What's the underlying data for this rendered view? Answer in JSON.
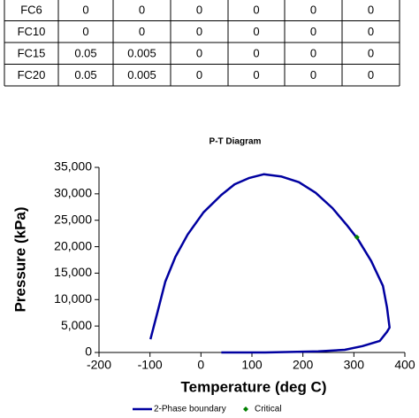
{
  "table": {
    "rows": [
      [
        "FC6",
        "0",
        "0",
        "0",
        "0",
        "0",
        "0"
      ],
      [
        "FC10",
        "0",
        "0",
        "0",
        "0",
        "0",
        "0"
      ],
      [
        "FC15",
        "0.05",
        "0.005",
        "0",
        "0",
        "0",
        "0"
      ],
      [
        "FC20",
        "0.05",
        "0.005",
        "0",
        "0",
        "0",
        "0"
      ]
    ]
  },
  "chart_data": {
    "type": "line",
    "title": "P-T Diagram",
    "x_label": "Temperature (deg C)",
    "y_label": "Pressure (kPa)",
    "series": [
      {
        "name": "2-Phase boundary",
        "color": "#0000a0",
        "x": [
          -99,
          -85,
          -70,
          -50,
          -26,
          5,
          40,
          66,
          95,
          123,
          157,
          192,
          225,
          258,
          287,
          308,
          334,
          357,
          365,
          370,
          365,
          351,
          317,
          282,
          230,
          126,
          40
        ],
        "values": [
          2500,
          7700,
          13400,
          18100,
          22300,
          26500,
          29800,
          31800,
          33000,
          33700,
          33300,
          32200,
          30200,
          27300,
          24000,
          21400,
          17300,
          12600,
          8500,
          4700,
          3900,
          2200,
          1200,
          500,
          200,
          0,
          0
        ]
      },
      {
        "name": "Critical",
        "color": "#008000",
        "marker": "diamond",
        "x": [
          306
        ],
        "values": [
          21800
        ]
      }
    ],
    "xlim": [
      -200,
      400
    ],
    "xticks": [
      -200,
      -100,
      0,
      100,
      200,
      300,
      400
    ],
    "ylim": [
      0,
      35000
    ],
    "yticks": [
      0,
      {
        "value": 5000,
        "label": "5,000"
      },
      {
        "value": 10000,
        "label": "10,000"
      },
      {
        "value": 15000,
        "label": "15,000"
      },
      {
        "value": 20000,
        "label": "20,000"
      },
      {
        "value": 25000,
        "label": "25,000"
      },
      {
        "value": 30000,
        "label": "30,000"
      },
      {
        "value": 35000,
        "label": "35,000"
      }
    ],
    "grid": false
  }
}
